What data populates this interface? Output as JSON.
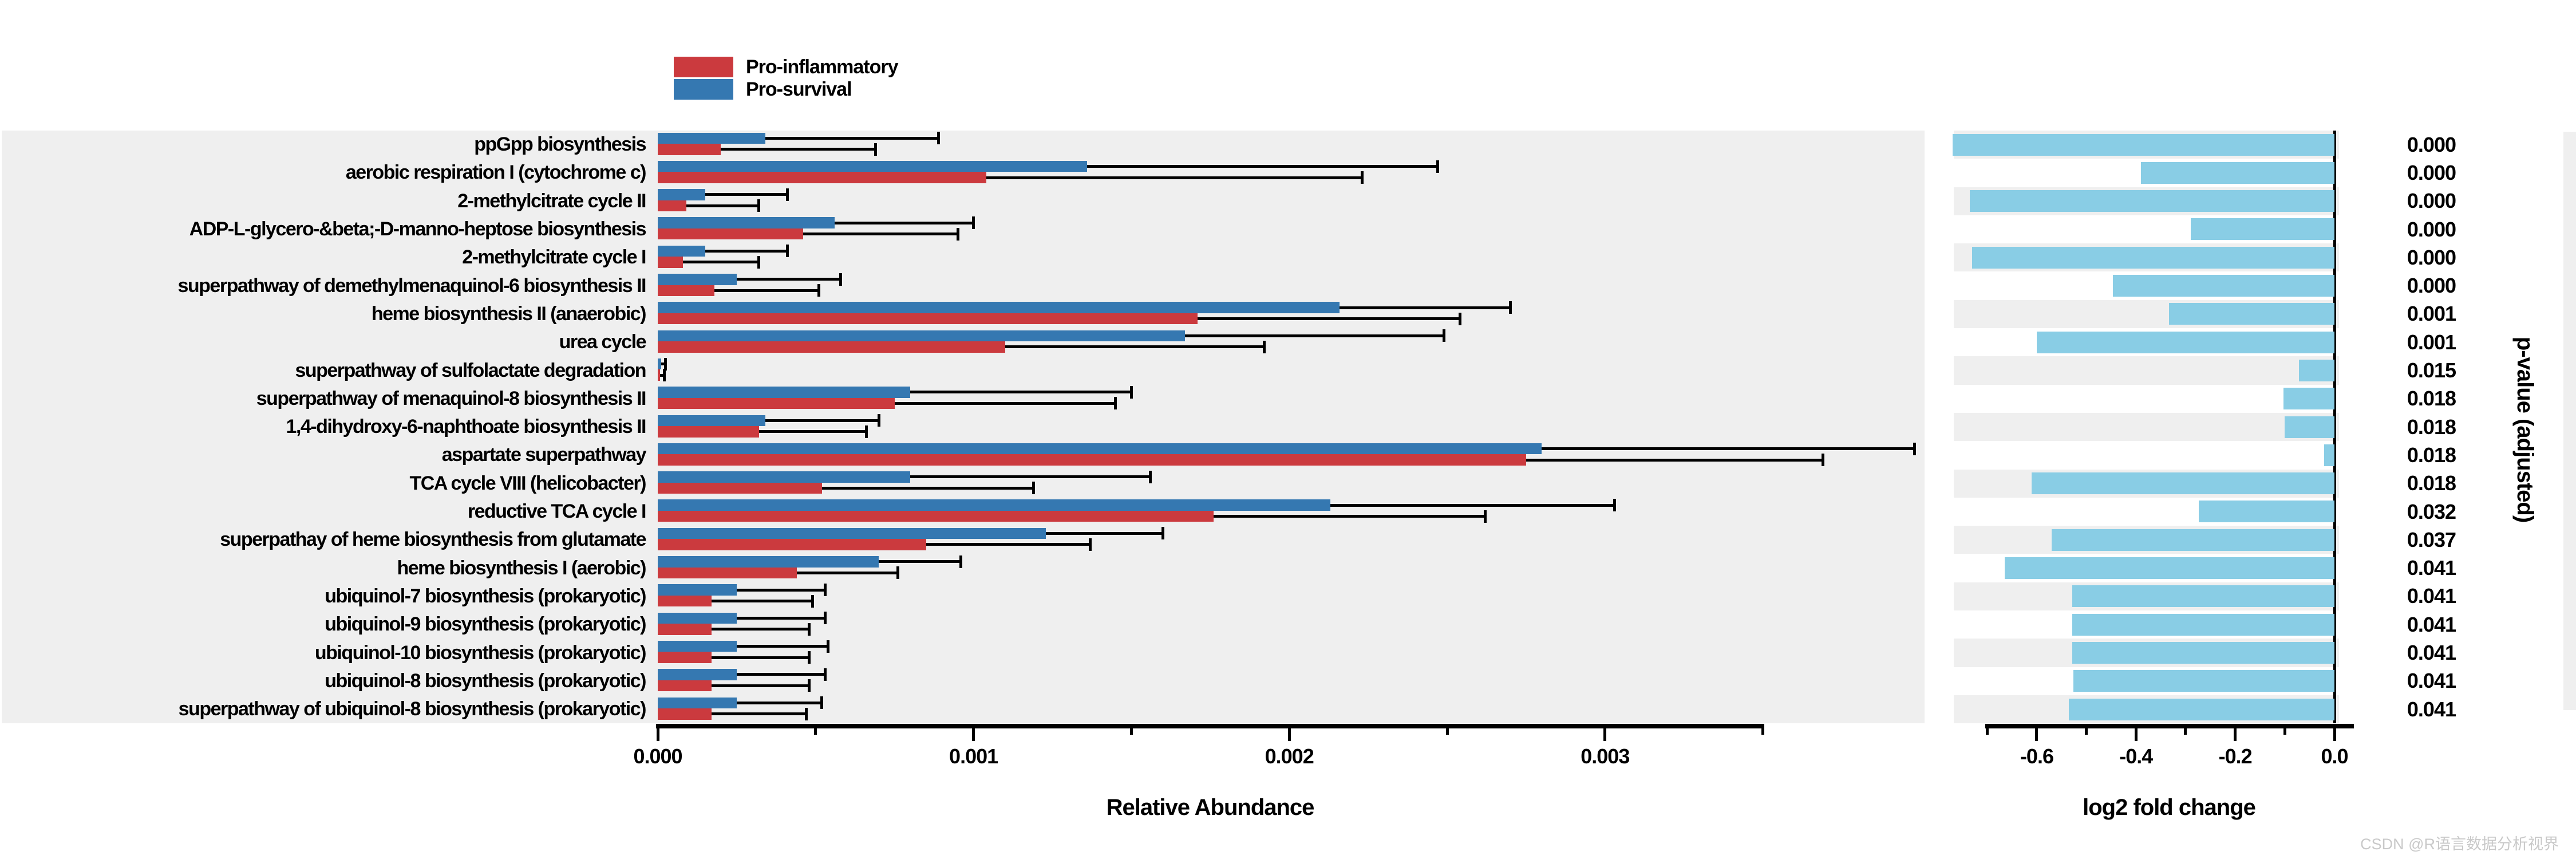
{
  "legend": {
    "items": [
      {
        "label": "Pro-inflammatory",
        "color": "#cb3a3e"
      },
      {
        "label": "Pro-survival",
        "color": "#3578b1"
      }
    ]
  },
  "left_chart": {
    "xlabel": "Relative Abundance"
  },
  "right_chart": {
    "xlabel": "log2 fold change"
  },
  "pvalue_axis_label": "p-value (adjusted)",
  "watermark": "CSDN @R语言数据分析视界",
  "colors": {
    "pro_inflammatory": "#cb3a3e",
    "pro_survival": "#3578b1",
    "log2fc_bar": "#89cde5",
    "panel_bg": "#efefef",
    "error_bar": "#000000"
  },
  "chart_data": [
    {
      "type": "bar",
      "title": "",
      "xlabel": "Relative Abundance",
      "orientation": "horizontal",
      "xlim": [
        0,
        0.0035
      ],
      "grid": false,
      "tick_values": [
        0,
        0.001,
        0.002,
        0.003
      ],
      "tick_labels": [
        "0.000",
        "0.001",
        "0.002",
        "0.003"
      ],
      "minor_tick_values": [
        0.0005,
        0.0015,
        0.0025,
        0.0035
      ],
      "categories": [
        "ppGpp biosynthesis",
        "aerobic respiration I (cytochrome c)",
        "2-methylcitrate cycle II",
        "ADP-L-glycero-&beta;-D-manno-heptose biosynthesis",
        "2-methylcitrate cycle I",
        "superpathway of demethylmenaquinol-6 biosynthesis II",
        "heme biosynthesis II (anaerobic)",
        "urea cycle",
        "superpathway of sulfolactate degradation",
        "superpathway of menaquinol-8 biosynthesis II",
        "1,4-dihydroxy-6-naphthoate biosynthesis II",
        "aspartate superpathway",
        "TCA cycle VIII (helicobacter)",
        "reductive TCA cycle I",
        "superpathay of heme biosynthesis from glutamate",
        "heme biosynthesis I (aerobic)",
        "ubiquinol-7 biosynthesis (prokaryotic)",
        "ubiquinol-9 biosynthesis (prokaryotic)",
        "ubiquinol-10 biosynthesis (prokaryotic)",
        "ubiquinol-8 biosynthesis (prokaryotic)",
        "superpathway of ubiquinol-8 biosynthesis (prokaryotic)"
      ],
      "series": [
        {
          "name": "Pro-survival",
          "color": "#3578b1",
          "values": [
            0.00034,
            0.00136,
            0.00015,
            0.00056,
            0.00015,
            0.00025,
            0.00216,
            0.00167,
            1e-05,
            0.0008,
            0.00034,
            0.0028,
            0.0008,
            0.00213,
            0.00123,
            0.0007,
            0.00025,
            0.00025,
            0.00025,
            0.00025,
            0.00025
          ],
          "error_upper": [
            0.00089,
            0.00247,
            0.00041,
            0.001,
            0.00041,
            0.00058,
            0.0027,
            0.00249,
            2.5e-05,
            0.0015,
            0.0007,
            0.00398,
            0.00156,
            0.00303,
            0.0016,
            0.00096,
            0.00053,
            0.00053,
            0.00054,
            0.00053,
            0.00052
          ]
        },
        {
          "name": "Pro-inflammatory",
          "color": "#cb3a3e",
          "values": [
            0.0002,
            0.00104,
            9e-05,
            0.00046,
            8e-05,
            0.00018,
            0.00171,
            0.0011,
            7e-06,
            0.00075,
            0.00032,
            0.00275,
            0.00052,
            0.00176,
            0.00085,
            0.00044,
            0.00017,
            0.00017,
            0.00017,
            0.00017,
            0.00017
          ],
          "error_upper": [
            0.00069,
            0.00223,
            0.00032,
            0.00095,
            0.00032,
            0.00051,
            0.00254,
            0.00192,
            2e-05,
            0.00145,
            0.00066,
            0.00369,
            0.00119,
            0.00262,
            0.00137,
            0.00076,
            0.00049,
            0.00048,
            0.00048,
            0.00048,
            0.00047
          ]
        }
      ]
    },
    {
      "type": "bar",
      "title": "",
      "xlabel": "log2 fold change",
      "orientation": "horizontal",
      "xlim": [
        -0.72,
        0.04
      ],
      "grid": false,
      "tick_values": [
        -0.6,
        -0.4,
        -0.2,
        0.0
      ],
      "tick_labels": [
        "-0.6",
        "-0.4",
        "-0.2",
        "0.0"
      ],
      "minor_tick_values": [
        -0.7,
        -0.5,
        -0.3,
        -0.1
      ],
      "bar_color": "#89cde5",
      "values": [
        -0.77,
        -0.39,
        -0.735,
        -0.29,
        -0.73,
        -0.446,
        -0.333,
        -0.6,
        -0.071,
        -0.103,
        -0.1,
        -0.021,
        -0.61,
        -0.273,
        -0.57,
        -0.665,
        -0.528,
        -0.528,
        -0.528,
        -0.526,
        -0.535
      ]
    },
    {
      "type": "table",
      "title": "p-value (adjusted)",
      "values": [
        "0.000",
        "0.000",
        "0.000",
        "0.000",
        "0.000",
        "0.000",
        "0.001",
        "0.001",
        "0.015",
        "0.018",
        "0.018",
        "0.018",
        "0.018",
        "0.032",
        "0.037",
        "0.041",
        "0.041",
        "0.041",
        "0.041",
        "0.041",
        "0.041"
      ]
    }
  ]
}
